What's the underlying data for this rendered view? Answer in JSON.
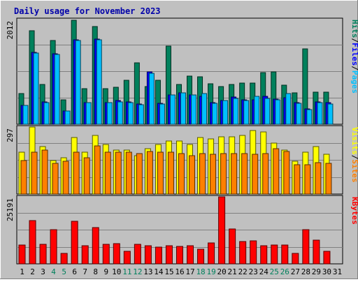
{
  "chart_data": [
    {
      "type": "bar",
      "title": "Daily usage for November 2023",
      "ylabel_top": "2012",
      "right_labels": [
        {
          "text": "Hits",
          "color": "#00805c"
        },
        {
          "text": "Files",
          "color": "#0000ff"
        },
        {
          "text": "Pages",
          "color": "#00c0ff"
        }
      ],
      "separator": "/",
      "categories": [
        "1",
        "2",
        "3",
        "4",
        "5",
        "6",
        "7",
        "8",
        "9",
        "10",
        "11",
        "12",
        "13",
        "14",
        "15",
        "16",
        "17",
        "18",
        "19",
        "20",
        "21",
        "22",
        "23",
        "24",
        "25",
        "26",
        "27",
        "28",
        "29",
        "30",
        "31"
      ],
      "weekend_days": [
        "4",
        "5",
        "11",
        "12",
        "18",
        "19",
        "25",
        "26"
      ],
      "ylim": [
        0,
        2012
      ],
      "series": [
        {
          "name": "Hits",
          "color": "#00805c",
          "values": [
            590,
            1795,
            770,
            1605,
            475,
            1995,
            680,
            1880,
            680,
            715,
            850,
            1180,
            720,
            850,
            1500,
            760,
            930,
            915,
            780,
            720,
            760,
            790,
            790,
            990,
            1010,
            745,
            600,
            1450,
            620,
            620,
            0
          ]
        },
        {
          "name": "Files",
          "color": "#0000ff",
          "values": [
            360,
            1380,
            430,
            1355,
            255,
            1620,
            420,
            1635,
            420,
            460,
            430,
            390,
            1000,
            400,
            560,
            600,
            570,
            540,
            415,
            460,
            520,
            470,
            475,
            530,
            480,
            510,
            420,
            300,
            430,
            410,
            0
          ]
        },
        {
          "name": "Pages",
          "color": "#00c0ff",
          "values": [
            360,
            1370,
            420,
            1340,
            260,
            1610,
            420,
            1620,
            420,
            425,
            410,
            370,
            980,
            390,
            570,
            610,
            560,
            590,
            400,
            450,
            490,
            450,
            530,
            500,
            470,
            590,
            400,
            285,
            420,
            385,
            0
          ]
        }
      ]
    },
    {
      "type": "bar",
      "ylabel_top": "297",
      "right_labels": [
        {
          "text": "Visits",
          "color": "#ffff00"
        },
        {
          "text": "Sites",
          "color": "#ff8000"
        }
      ],
      "separator": "/",
      "ylim": [
        0,
        297
      ],
      "series": [
        {
          "name": "Visits",
          "color": "#ffff00",
          "values": [
            185,
            297,
            210,
            150,
            160,
            250,
            185,
            260,
            220,
            195,
            195,
            170,
            200,
            220,
            235,
            235,
            220,
            250,
            245,
            255,
            255,
            260,
            280,
            275,
            225,
            195,
            145,
            185,
            210,
            175,
            0
          ]
        },
        {
          "name": "Sites",
          "color": "#ff8000",
          "values": [
            150,
            185,
            195,
            135,
            145,
            185,
            160,
            215,
            185,
            185,
            185,
            180,
            190,
            185,
            185,
            180,
            170,
            180,
            175,
            180,
            180,
            180,
            175,
            180,
            200,
            190,
            130,
            130,
            140,
            135,
            0
          ]
        }
      ]
    },
    {
      "type": "bar",
      "ylabel_top": "25191",
      "right_labels": [
        {
          "text": "KBytes",
          "color": "#ff0000"
        }
      ],
      "ylim": [
        0,
        25191
      ],
      "series": [
        {
          "name": "KBytes",
          "color": "#ff0000",
          "values": [
            6960,
            16150,
            7380,
            12850,
            3950,
            16050,
            6920,
            13630,
            7290,
            7630,
            4760,
            7240,
            6900,
            6330,
            6780,
            6460,
            6870,
            5610,
            7980,
            25191,
            13210,
            8470,
            8600,
            6730,
            7110,
            7060,
            3950,
            12740,
            8930,
            4850,
            0
          ]
        }
      ]
    }
  ]
}
